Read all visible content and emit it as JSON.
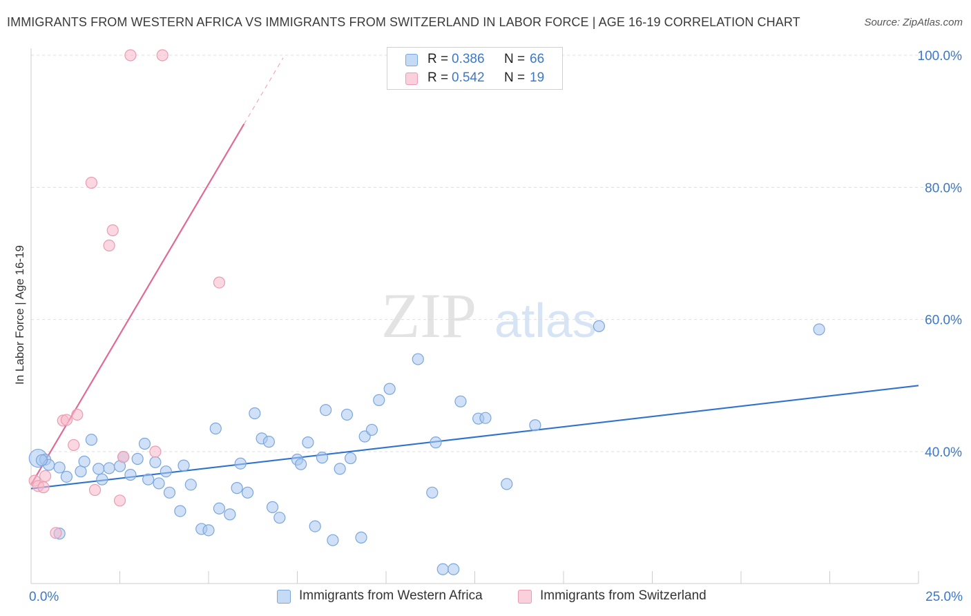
{
  "header": {
    "title": "IMMIGRANTS FROM WESTERN AFRICA VS IMMIGRANTS FROM SWITZERLAND IN LABOR FORCE | AGE 16-19 CORRELATION CHART",
    "source": "Source: ZipAtlas.com"
  },
  "watermark": {
    "zip": "ZIP",
    "atlas": "atlas"
  },
  "legend": {
    "rows": [
      {
        "r_label": "R =",
        "r_value": "0.386",
        "n_label": "N =",
        "n_value": "66"
      },
      {
        "r_label": "R =",
        "r_value": "0.542",
        "n_label": "N =",
        "n_value": "19"
      }
    ]
  },
  "colors": {
    "blue_fill": "#a9c8f0",
    "blue_stroke": "#7aa6dd",
    "blue_line": "#2f72d0",
    "pink_fill": "#f7b8c9",
    "pink_stroke": "#ec9ab2",
    "pink_line": "#e06a95",
    "tick_text": "#3b78c8",
    "grid": "#dddddd"
  },
  "chart_data": {
    "type": "scatter",
    "title": "IMMIGRANTS FROM WESTERN AFRICA VS IMMIGRANTS FROM SWITZERLAND IN LABOR FORCE | AGE 16-19 CORRELATION CHART",
    "ylabel": "In Labor Force | Age 16-19",
    "xlabel": "",
    "xlim": [
      0,
      25
    ],
    "ylim": [
      20,
      102
    ],
    "x_tick_labels": [
      "0.0%",
      "25.0%"
    ],
    "y_ticks": [
      40,
      60,
      80,
      100
    ],
    "y_tick_labels": [
      "40.0%",
      "60.0%",
      "80.0%",
      "100.0%"
    ],
    "grid": true,
    "legend_position": "top-center",
    "series": [
      {
        "name": "Immigrants from Western Africa",
        "color": "#a9c8f0",
        "r": 0.386,
        "n": 66,
        "trend": {
          "x": [
            0,
            25
          ],
          "y": [
            34.4,
            50.0
          ]
        },
        "points": [
          [
            0.2,
            39.0
          ],
          [
            0.4,
            38.8
          ],
          [
            0.5,
            38.0
          ],
          [
            0.8,
            37.6
          ],
          [
            1.0,
            36.2
          ],
          [
            1.4,
            37.0
          ],
          [
            1.5,
            38.5
          ],
          [
            1.7,
            41.8
          ],
          [
            1.9,
            37.4
          ],
          [
            2.0,
            35.8
          ],
          [
            2.2,
            37.5
          ],
          [
            2.5,
            37.8
          ],
          [
            2.6,
            39.2
          ],
          [
            2.8,
            36.5
          ],
          [
            3.0,
            38.9
          ],
          [
            3.2,
            41.2
          ],
          [
            3.3,
            35.8
          ],
          [
            3.5,
            38.4
          ],
          [
            3.6,
            35.2
          ],
          [
            3.9,
            33.8
          ],
          [
            3.8,
            37.0
          ],
          [
            4.3,
            37.9
          ],
          [
            4.5,
            35.0
          ],
          [
            4.2,
            31.0
          ],
          [
            4.8,
            28.3
          ],
          [
            5.0,
            28.1
          ],
          [
            5.2,
            43.5
          ],
          [
            5.3,
            31.4
          ],
          [
            5.6,
            30.5
          ],
          [
            5.8,
            34.5
          ],
          [
            5.9,
            38.2
          ],
          [
            6.1,
            33.8
          ],
          [
            6.3,
            45.8
          ],
          [
            6.5,
            42.0
          ],
          [
            6.7,
            41.5
          ],
          [
            6.8,
            31.6
          ],
          [
            7.0,
            30.0
          ],
          [
            7.5,
            38.8
          ],
          [
            7.6,
            38.1
          ],
          [
            7.8,
            41.4
          ],
          [
            8.0,
            28.7
          ],
          [
            8.2,
            39.1
          ],
          [
            8.3,
            46.3
          ],
          [
            8.5,
            26.6
          ],
          [
            8.7,
            37.4
          ],
          [
            8.9,
            45.6
          ],
          [
            9.0,
            39.0
          ],
          [
            9.3,
            27.0
          ],
          [
            9.4,
            42.3
          ],
          [
            9.6,
            43.3
          ],
          [
            9.8,
            47.8
          ],
          [
            10.1,
            49.5
          ],
          [
            10.9,
            54.0
          ],
          [
            11.3,
            33.8
          ],
          [
            11.4,
            41.4
          ],
          [
            11.6,
            22.2
          ],
          [
            11.9,
            22.2
          ],
          [
            12.1,
            47.6
          ],
          [
            12.6,
            45.0
          ],
          [
            12.8,
            45.1
          ],
          [
            13.4,
            35.1
          ],
          [
            14.2,
            44.0
          ],
          [
            16.0,
            59.0
          ],
          [
            22.2,
            58.5
          ],
          [
            0.8,
            27.6
          ],
          [
            0.3,
            38.7
          ]
        ]
      },
      {
        "name": "Immigrants from Switzerland",
        "color": "#f7b8c9",
        "r": 0.542,
        "n": 19,
        "trend": {
          "x": [
            0,
            6.0
          ],
          "y": [
            35.0,
            89.6
          ]
        },
        "trend_extension": {
          "x": [
            6.0,
            7.1
          ],
          "y": [
            89.6,
            99.6
          ]
        },
        "points": [
          [
            0.1,
            35.6
          ],
          [
            0.2,
            34.8
          ],
          [
            0.35,
            34.6
          ],
          [
            0.4,
            36.3
          ],
          [
            0.7,
            27.7
          ],
          [
            0.9,
            44.7
          ],
          [
            1.0,
            44.8
          ],
          [
            1.2,
            41.0
          ],
          [
            1.3,
            45.6
          ],
          [
            1.7,
            80.7
          ],
          [
            1.8,
            34.2
          ],
          [
            2.2,
            71.2
          ],
          [
            2.3,
            73.5
          ],
          [
            2.5,
            32.6
          ],
          [
            2.6,
            39.2
          ],
          [
            2.8,
            100.0
          ],
          [
            3.5,
            40.0
          ],
          [
            3.7,
            100.0
          ],
          [
            5.3,
            65.6
          ]
        ]
      }
    ]
  }
}
